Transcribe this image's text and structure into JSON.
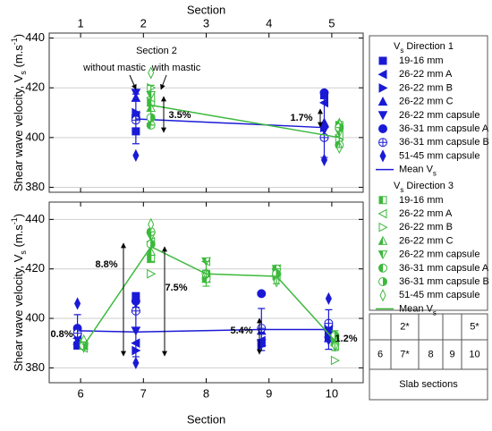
{
  "chart_data": {
    "type": "scatter",
    "xlabel": "Section",
    "ylabel": [
      "Shear wave velocity, V",
      "s",
      " (m.s",
      "-1",
      ")"
    ],
    "grid": true,
    "panels": [
      {
        "xlim": [
          0.5,
          5.5
        ],
        "ylim": [
          378,
          442
        ],
        "xticks": [
          1,
          2,
          3,
          4,
          5
        ],
        "yticks": [
          380,
          400,
          420,
          440
        ]
      },
      {
        "xlim": [
          5.5,
          10.5
        ],
        "ylim": [
          374,
          447
        ],
        "xticks": [
          6,
          7,
          8,
          9,
          10
        ],
        "yticks": [
          380,
          400,
          420,
          440
        ]
      }
    ],
    "legend_groups": [
      {
        "title": "V",
        "sub": "s",
        "text": " Direction 1"
      },
      {
        "title": "V",
        "sub": "s",
        "text": " Direction 3"
      }
    ],
    "series": [
      {
        "name": "19-16 mm",
        "group": 0,
        "marker": "square",
        "fill": "solid",
        "color": "#1a1ad6",
        "x": [
          1.88,
          4.88,
          5.95,
          6.88,
          8.88,
          9.95
        ],
        "values": [
          402.5,
          417,
          389,
          409,
          390,
          397
        ]
      },
      {
        "name": "26-22 mm A",
        "group": 0,
        "marker": "triangle-left",
        "fill": "solid",
        "color": "#1a1ad6",
        "x": [
          1.88,
          4.88,
          5.95,
          6.88,
          8.88,
          9.95
        ],
        "values": [
          409,
          414,
          392,
          390,
          391,
          395
        ]
      },
      {
        "name": "26-22 mm B",
        "group": 0,
        "marker": "triangle-right",
        "fill": "solid",
        "color": "#1a1ad6",
        "x": [
          1.88,
          4.88,
          5.95,
          6.88,
          8.88,
          9.95
        ],
        "values": [
          410,
          404,
          395,
          387,
          389,
          393
        ]
      },
      {
        "name": "26-22 mm C",
        "group": 0,
        "marker": "triangle-up",
        "fill": "solid",
        "color": "#1a1ad6",
        "x": [
          1.88,
          4.88,
          5.95,
          6.88,
          8.88,
          9.95
        ],
        "values": [
          416,
          406,
          391,
          404,
          395,
          392
        ]
      },
      {
        "name": "26-22 mm capsule",
        "group": 0,
        "marker": "triangle-down",
        "fill": "solid",
        "color": "#1a1ad6",
        "x": [
          1.88,
          4.88,
          5.95,
          6.88,
          8.88,
          9.95
        ],
        "values": [
          418,
          403,
          392,
          395,
          390,
          391
        ]
      },
      {
        "name": "36-31 mm capsule A",
        "group": 0,
        "marker": "circle",
        "fill": "solid",
        "color": "#1a1ad6",
        "x": [
          1.88,
          4.88,
          5.95,
          6.88,
          8.88,
          9.95
        ],
        "values": [
          408,
          418,
          396,
          407,
          410,
          397
        ]
      },
      {
        "name": "36-31 mm capsule B",
        "group": 0,
        "marker": "circle-plus",
        "fill": "open",
        "color": "#1a1ad6",
        "x": [
          1.88,
          4.88,
          5.95,
          6.88,
          8.88,
          9.95
        ],
        "values": [
          407,
          400,
          394,
          403,
          396,
          398
        ]
      },
      {
        "name": "51-45 mm capsule",
        "group": 0,
        "marker": "diamond",
        "fill": "solid",
        "color": "#1a1ad6",
        "x": [
          1.88,
          4.88,
          5.95,
          6.88,
          8.88,
          9.95
        ],
        "values": [
          392.8,
          391,
          406,
          382,
          390,
          408
        ]
      },
      {
        "name": "Mean V",
        "name_sub": "s",
        "group": 0,
        "marker": "line",
        "color": "#1a1ad6",
        "x": [
          1.88,
          4.88,
          5.95,
          6.88,
          8.88,
          9.95
        ],
        "values": [
          407.5,
          404,
          395,
          394.5,
          395.5,
          395.5
        ],
        "errors": [
          10,
          12,
          6.5,
          10,
          8.5,
          8
        ]
      },
      {
        "name": "19-16 mm",
        "group": 1,
        "marker": "square",
        "fill": "half",
        "color": "#3cb93c",
        "x": [
          2.12,
          5.12,
          6.05,
          7.12,
          8.0,
          9.12,
          10.05
        ],
        "values": [
          414,
          405,
          389,
          424,
          418,
          417,
          391
        ]
      },
      {
        "name": "26-22 mm A",
        "group": 1,
        "marker": "triangle-left",
        "fill": "open",
        "color": "#3cb93c",
        "x": [
          2.12,
          5.12,
          6.05,
          7.12,
          8.0,
          9.12,
          10.05
        ],
        "values": [
          416,
          401,
          388,
          431,
          423,
          420,
          389
        ]
      },
      {
        "name": "26-22 mm B",
        "group": 1,
        "marker": "triangle-right",
        "fill": "open",
        "color": "#3cb93c",
        "x": [
          2.12,
          5.12,
          6.05,
          7.12,
          8.0,
          9.12,
          10.05
        ],
        "values": [
          420,
          399,
          390,
          418,
          417,
          418,
          383
        ]
      },
      {
        "name": "26-22 mm C",
        "group": 1,
        "marker": "triangle-up",
        "fill": "half",
        "color": "#3cb93c",
        "x": [
          2.12,
          5.12,
          6.05,
          7.12,
          8.0,
          9.12,
          10.05
        ],
        "values": [
          412,
          406,
          389,
          427,
          416,
          419,
          391
        ]
      },
      {
        "name": "26-22 mm capsule",
        "group": 1,
        "marker": "triangle-down",
        "fill": "half",
        "color": "#3cb93c",
        "x": [
          2.12,
          5.12,
          6.05,
          7.12,
          8.0,
          9.12,
          10.05
        ],
        "values": [
          417,
          402,
          388,
          433,
          423,
          420,
          390
        ]
      },
      {
        "name": "36-31 mm capsule A",
        "group": 1,
        "marker": "circle",
        "fill": "half",
        "color": "#3cb93c",
        "x": [
          2.12,
          5.12,
          6.05,
          7.12,
          8.0,
          9.12,
          10.05
        ],
        "values": [
          405,
          397,
          390,
          435,
          416,
          420,
          392
        ]
      },
      {
        "name": "36-31 mm capsule B",
        "group": 1,
        "marker": "circle",
        "fill": "half-right",
        "color": "#3cb93c",
        "x": [
          2.12,
          5.12,
          6.05,
          7.12,
          8.0,
          9.12,
          10.05
        ],
        "values": [
          408,
          404,
          389,
          430,
          418,
          418,
          393
        ]
      },
      {
        "name": "51-45 mm capsule",
        "group": 1,
        "marker": "diamond",
        "fill": "open",
        "color": "#3cb93c",
        "x": [
          2.12,
          5.12,
          6.05,
          7.12,
          8.0,
          9.12,
          10.05
        ],
        "values": [
          426,
          396,
          391,
          438,
          418,
          415,
          389
        ]
      },
      {
        "name": "Mean V",
        "name_sub": "s",
        "group": 1,
        "marker": "line",
        "color": "#3cb93c",
        "x": [
          2.12,
          5.12,
          6.05,
          7.12,
          8.0,
          9.12,
          10.05
        ],
        "values": [
          413,
          400,
          389,
          429,
          418,
          417,
          391
        ],
        "errors": [
          8,
          4,
          1.5,
          6,
          5,
          3,
          4
        ]
      }
    ],
    "annotations": [
      "Section 2",
      "without mastic",
      "with mastic",
      "3.5%",
      "1.7%",
      "8.8%",
      "7.5%",
      "5.4%",
      "0.8%",
      "1.2%"
    ]
  },
  "slab_table": {
    "rows": [
      [
        null,
        "2*",
        null,
        null,
        "5*"
      ],
      [
        "6",
        "7*",
        "8",
        "9",
        "10"
      ]
    ],
    "caption": "Slab sections"
  }
}
